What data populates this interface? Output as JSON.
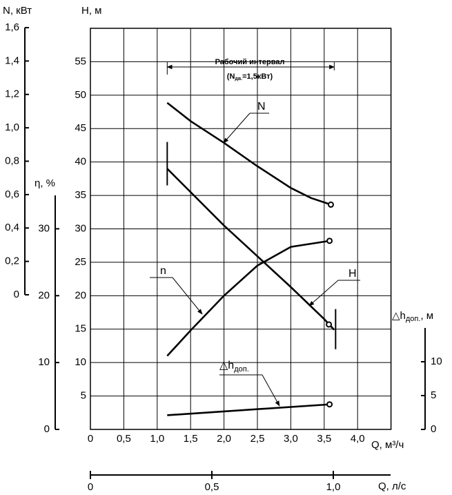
{
  "chart_data": {
    "type": "line",
    "x_title": "Q, м³/ч",
    "y_title": "H, м",
    "xlim": [
      0,
      4.5
    ],
    "ylim": [
      0,
      60
    ],
    "xticks": [
      {
        "value": 0,
        "label": "0"
      },
      {
        "value": 0.5,
        "label": "0,5"
      },
      {
        "value": 1.0,
        "label": "1,0"
      },
      {
        "value": 1.5,
        "label": "1,5"
      },
      {
        "value": 2.0,
        "label": "2,0"
      },
      {
        "value": 2.5,
        "label": "2,5"
      },
      {
        "value": 3.0,
        "label": "3,0"
      },
      {
        "value": 3.5,
        "label": "3,5"
      },
      {
        "value": 4.0,
        "label": "4,0"
      }
    ],
    "yticks": [
      5,
      10,
      15,
      20,
      25,
      30,
      35,
      40,
      45,
      50,
      55
    ],
    "grid": true,
    "axes": {
      "N": {
        "title": "N, кВт",
        "ylim": [
          0,
          1.6
        ],
        "yticks": [
          {
            "value": 0,
            "label": "0"
          },
          {
            "value": 0.2,
            "label": "0,2"
          },
          {
            "value": 0.4,
            "label": "0,4"
          },
          {
            "value": 0.6,
            "label": "0,6"
          },
          {
            "value": 0.8,
            "label": "0,8"
          },
          {
            "value": 1.0,
            "label": "1,0"
          },
          {
            "value": 1.2,
            "label": "1,2"
          },
          {
            "value": 1.4,
            "label": "1,4"
          },
          {
            "value": 1.6,
            "label": "1,6"
          }
        ]
      },
      "eta": {
        "title": "η, %",
        "ylim": [
          0,
          35
        ],
        "yticks": [
          0,
          10,
          20,
          30
        ]
      },
      "dh": {
        "title": "△h",
        "title_sub": "доп.",
        "title_unit": ", м",
        "ylim": [
          0,
          15
        ],
        "yticks": [
          0,
          5,
          10
        ]
      },
      "q_ls": {
        "title": "Q, л/с",
        "xlim": [
          0,
          1.25
        ],
        "xticks": [
          {
            "value": 0,
            "label": "0"
          },
          {
            "value": 0.5,
            "label": "0,5"
          },
          {
            "value": 1.0,
            "label": "1,0"
          }
        ]
      }
    },
    "work_interval": {
      "label": "Рабочий интервал",
      "note_pre": "(N",
      "note_sub": "дв.",
      "note_post": "=1,5кВт)",
      "range": [
        1.15,
        3.65
      ]
    },
    "series": [
      {
        "name": "N",
        "axis": "N",
        "color": "#000000",
        "x": [
          1.15,
          1.5,
          2.0,
          2.5,
          3.0,
          3.3,
          3.6
        ],
        "values": [
          1.15,
          1.04,
          0.91,
          0.77,
          0.64,
          0.58,
          0.54
        ],
        "marker_x": 3.6,
        "marker_value": 0.54
      },
      {
        "name": "n",
        "axis": "eta",
        "color": "#000000",
        "x": [
          1.15,
          1.5,
          2.0,
          2.5,
          3.0,
          3.58
        ],
        "values": [
          11,
          14.8,
          20,
          24.5,
          27.3,
          28.2
        ],
        "marker_x": 3.58,
        "marker_value": 28.2
      },
      {
        "name": "H",
        "axis": "H",
        "color": "#000000",
        "x": [
          1.15,
          1.5,
          2.0,
          2.5,
          3.0,
          3.5,
          3.65
        ],
        "values": [
          39,
          35.5,
          30.5,
          25.9,
          21.3,
          16.5,
          14.9
        ],
        "marker_x": 3.57,
        "marker_value": 15.7
      },
      {
        "name": "△h",
        "name_sub": "доп.",
        "axis": "dh",
        "color": "#000000",
        "x": [
          1.15,
          3.58
        ],
        "values": [
          2.1,
          3.7
        ],
        "marker_x": 3.58,
        "marker_value": 3.7
      }
    ]
  }
}
